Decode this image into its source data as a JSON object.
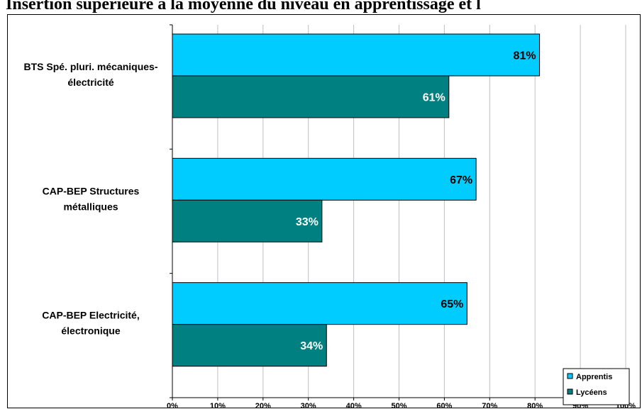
{
  "chart_data": {
    "type": "bar",
    "orientation": "horizontal",
    "title": "Insertion supérieure à la moyenne du niveau en apprentissage et l",
    "categories": [
      [
        "BTS Spé. pluri. mécaniques-",
        "électricité"
      ],
      [
        "CAP-BEP Structures",
        "métalliques"
      ],
      [
        "CAP-BEP Electricité,",
        "électronique"
      ]
    ],
    "series": [
      {
        "name": "Apprentis",
        "values": [
          81,
          67,
          65
        ],
        "color": "#00ccff",
        "label_color": "#000000"
      },
      {
        "name": "Lycéens",
        "values": [
          61,
          33,
          34
        ],
        "color": "#008080",
        "label_color": "#ffffff"
      }
    ],
    "data_labels": [
      [
        "81%",
        "67%",
        "65%"
      ],
      [
        "61%",
        "33%",
        "34%"
      ]
    ],
    "xlim": [
      0,
      100
    ],
    "x_ticks": [
      "0%",
      "10%",
      "20%",
      "30%",
      "40%",
      "50%",
      "60%",
      "70%",
      "80%",
      "90%",
      "100%"
    ],
    "grid": true,
    "legend": "bottom-right"
  }
}
